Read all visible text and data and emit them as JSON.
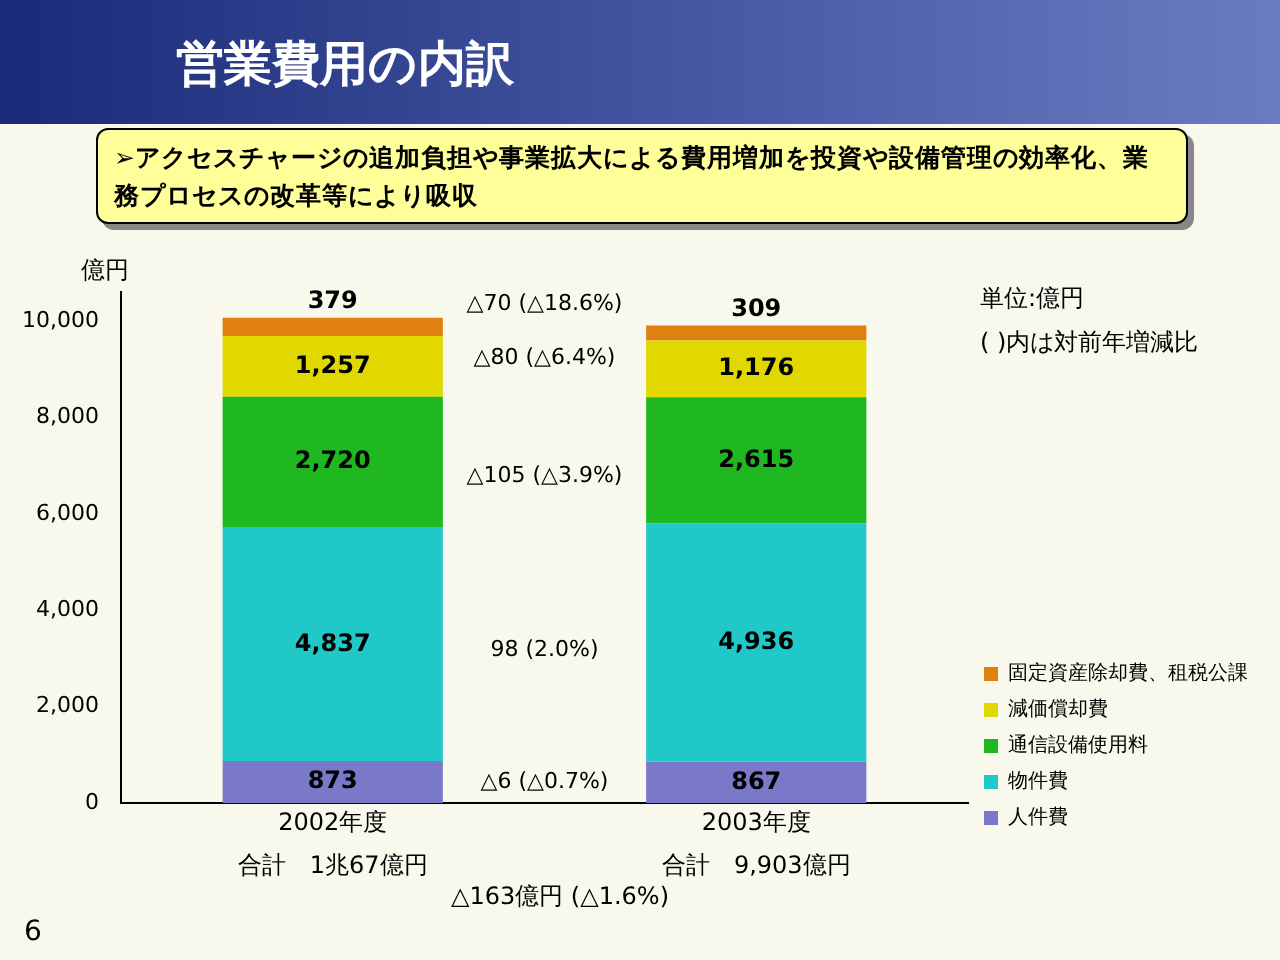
{
  "chart_data": {
    "type": "bar",
    "title": "営業費用の内訳",
    "subtitle": "➢アクセスチャージの追加負担や事業拡大による費用増加を投資や設備管理の効率化、業務プロセスの改革等により吸収",
    "ylabel": "億円",
    "categories": [
      "2002年度",
      "2003年度"
    ],
    "stacked": true,
    "series": [
      {
        "name": "人件費",
        "color": "#7a78c8",
        "values": [
          873,
          867
        ],
        "value_labels": [
          "873",
          "867"
        ]
      },
      {
        "name": "物件費",
        "color": "#20c8c8",
        "values": [
          4837,
          4936
        ],
        "value_labels": [
          "4,837",
          "4,936"
        ]
      },
      {
        "name": "通信設備使用料",
        "color": "#20b820",
        "values": [
          2720,
          2615
        ],
        "value_labels": [
          "2,720",
          "2,615"
        ]
      },
      {
        "name": "減価償却費",
        "color": "#e0d800",
        "values": [
          1257,
          1176
        ],
        "value_labels": [
          "1,257",
          "1,176"
        ]
      },
      {
        "name": "固定資産除却費、租税公課",
        "color": "#e08010",
        "values": [
          379,
          309
        ],
        "value_labels": [
          "379",
          "309"
        ]
      }
    ],
    "ylim": [
      0,
      10600
    ],
    "yticks": [
      0,
      {
        "value": 2000,
        "label": "2,000"
      },
      {
        "value": 4000,
        "label": "4,000"
      },
      {
        "value": 6000,
        "label": "6,000"
      },
      {
        "value": 8000,
        "label": "8,000"
      },
      {
        "value": 10000,
        "label": "10,000"
      }
    ],
    "grid": false,
    "legend": "right",
    "annotations": [
      "△70 (△18.6%)",
      "△80 (△6.4%)",
      "△105 (△3.9%)",
      "98 (2.0%)",
      "△6 (△0.7%)",
      "合計　1兆67億円",
      "合計　9,903億円",
      "△163億円 (△1.6%)",
      "単位:億円",
      "( )内は対前年増減比",
      "6"
    ]
  }
}
